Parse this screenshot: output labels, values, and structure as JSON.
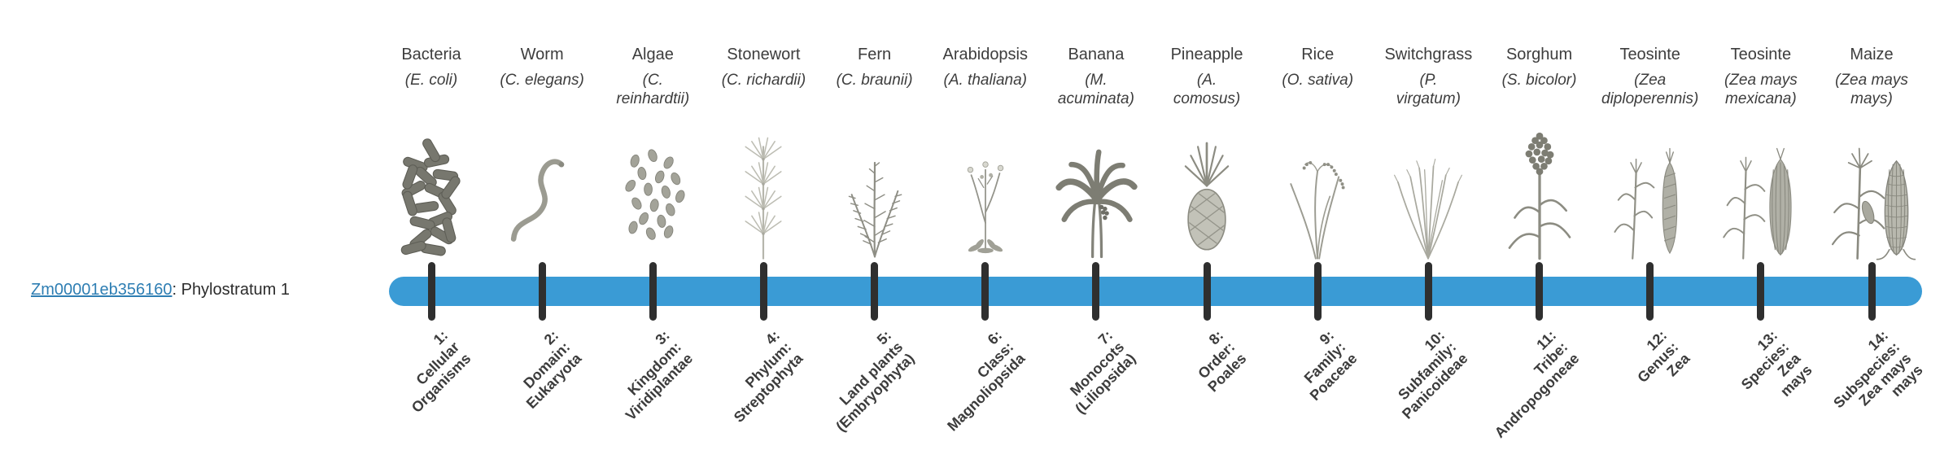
{
  "page": {
    "gene_label": {
      "link_text": "Zm00001eb356160",
      "suffix": ": Phylostratum 1"
    }
  },
  "colors": {
    "bar": "#3a9bd5",
    "tick": "#2f2f2f",
    "link": "#2e7eb3",
    "text": "#3d3d3d"
  },
  "organisms": [
    {
      "name": "Bacteria",
      "scientific": [
        "(E. coli)"
      ],
      "icon": "bacteria",
      "stratum_lines": [
        "1:",
        "Cellular",
        "Organisms"
      ]
    },
    {
      "name": "Worm",
      "scientific": [
        "(C. elegans)"
      ],
      "icon": "worm",
      "stratum_lines": [
        "2:",
        "Domain:",
        "Eukaryota"
      ]
    },
    {
      "name": "Algae",
      "scientific": [
        "(C.",
        "reinhardtii)"
      ],
      "icon": "algae",
      "stratum_lines": [
        "3:",
        "Kingdom:",
        "Viridiplantae"
      ]
    },
    {
      "name": "Stonewort",
      "scientific": [
        "(C. richardii)"
      ],
      "icon": "stonewort",
      "stratum_lines": [
        "4:",
        "Phylum:",
        "Streptophyta"
      ]
    },
    {
      "name": "Fern",
      "scientific": [
        "(C. braunii)"
      ],
      "icon": "fern",
      "stratum_lines": [
        "5:",
        "Land plants",
        "(Embryophyta)"
      ]
    },
    {
      "name": "Arabidopsis",
      "scientific": [
        "(A. thaliana)"
      ],
      "icon": "arabidopsis",
      "stratum_lines": [
        "6:",
        "Class:",
        "Magnoliopsida"
      ]
    },
    {
      "name": "Banana",
      "scientific": [
        "(M.",
        "acuminata)"
      ],
      "icon": "banana",
      "stratum_lines": [
        "7:",
        "Monocots",
        "(Liliopsida)"
      ]
    },
    {
      "name": "Pineapple",
      "scientific": [
        "(A.",
        "comosus)"
      ],
      "icon": "pineapple",
      "stratum_lines": [
        "8:",
        "Order:",
        "Poales"
      ]
    },
    {
      "name": "Rice",
      "scientific": [
        "(O. sativa)"
      ],
      "icon": "rice",
      "stratum_lines": [
        "9:",
        "Family:",
        "Poaceae"
      ]
    },
    {
      "name": "Switchgrass",
      "scientific": [
        "(P.",
        "virgatum)"
      ],
      "icon": "switchgrass",
      "stratum_lines": [
        "10:",
        "Subfamily:",
        "Panicoideae"
      ]
    },
    {
      "name": "Sorghum",
      "scientific": [
        "(S. bicolor)"
      ],
      "icon": "sorghum",
      "stratum_lines": [
        "11:",
        "Tribe:",
        "Andropogoneae"
      ]
    },
    {
      "name": "Teosinte",
      "scientific": [
        "(Zea",
        "diploperennis)"
      ],
      "icon": "teosinte-diploperennis",
      "stratum_lines": [
        "12:",
        "Genus:",
        "Zea"
      ]
    },
    {
      "name": "Teosinte",
      "scientific": [
        "(Zea mays",
        "mexicana)"
      ],
      "icon": "teosinte-mexicana",
      "stratum_lines": [
        "13:",
        "Species:",
        "Zea",
        "mays"
      ]
    },
    {
      "name": "Maize",
      "scientific": [
        "(Zea mays",
        "mays)"
      ],
      "icon": "maize",
      "stratum_lines": [
        "14:",
        "Subspecies:",
        "Zea mays",
        "mays"
      ]
    }
  ]
}
